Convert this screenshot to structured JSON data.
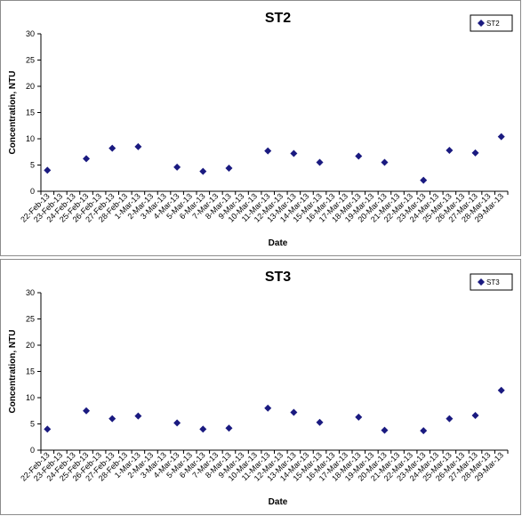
{
  "chart_data": [
    {
      "type": "scatter",
      "title": "ST2",
      "xlabel": "Date",
      "ylabel": "Concentration, NTU",
      "ylim": [
        0,
        30
      ],
      "yticks": [
        0,
        5,
        10,
        15,
        20,
        25,
        30
      ],
      "x_ticks": [
        "22-Feb-13",
        "23-Feb-13",
        "24-Feb-13",
        "25-Feb-13",
        "26-Feb-13",
        "27-Feb-13",
        "28-Feb-13",
        "1-Mar-13",
        "2-Mar-13",
        "3-Mar-13",
        "4-Mar-13",
        "5-Mar-13",
        "6-Mar-13",
        "7-Mar-13",
        "8-Mar-13",
        "9-Mar-13",
        "10-Mar-13",
        "11-Mar-13",
        "12-Mar-13",
        "13-Mar-13",
        "14-Mar-13",
        "15-Mar-13",
        "16-Mar-13",
        "17-Mar-13",
        "18-Mar-13",
        "19-Mar-13",
        "20-Mar-13",
        "21-Mar-13",
        "22-Mar-13",
        "23-Mar-13",
        "24-Mar-13",
        "25-Mar-13",
        "26-Mar-13",
        "27-Mar-13",
        "28-Mar-13",
        "29-Mar-13"
      ],
      "grid": false,
      "legend": "top-right",
      "marker_color": "#1a1a80",
      "series": [
        {
          "name": "ST2",
          "x": [
            "22-Feb-13",
            "25-Feb-13",
            "27-Feb-13",
            "1-Mar-13",
            "4-Mar-13",
            "6-Mar-13",
            "8-Mar-13",
            "11-Mar-13",
            "13-Mar-13",
            "15-Mar-13",
            "18-Mar-13",
            "20-Mar-13",
            "23-Mar-13",
            "25-Mar-13",
            "27-Mar-13",
            "29-Mar-13"
          ],
          "y": [
            4.0,
            6.2,
            8.2,
            8.5,
            4.6,
            3.8,
            4.4,
            7.7,
            7.2,
            5.5,
            6.7,
            5.5,
            2.1,
            7.8,
            7.3,
            10.4
          ]
        }
      ]
    },
    {
      "type": "scatter",
      "title": "ST3",
      "xlabel": "Date",
      "ylabel": "Concentration, NTU",
      "ylim": [
        0,
        30
      ],
      "yticks": [
        0,
        5,
        10,
        15,
        20,
        25,
        30
      ],
      "x_ticks": [
        "22-Feb-13",
        "23-Feb-13",
        "24-Feb-13",
        "25-Feb-13",
        "26-Feb-13",
        "27-Feb-13",
        "28-Feb-13",
        "1-Mar-13",
        "2-Mar-13",
        "3-Mar-13",
        "4-Mar-13",
        "5-Mar-13",
        "6-Mar-13",
        "7-Mar-13",
        "8-Mar-13",
        "9-Mar-13",
        "10-Mar-13",
        "11-Mar-13",
        "12-Mar-13",
        "13-Mar-13",
        "14-Mar-13",
        "15-Mar-13",
        "16-Mar-13",
        "17-Mar-13",
        "18-Mar-13",
        "19-Mar-13",
        "20-Mar-13",
        "21-Mar-13",
        "22-Mar-13",
        "23-Mar-13",
        "24-Mar-13",
        "25-Mar-13",
        "26-Mar-13",
        "27-Mar-13",
        "28-Mar-13",
        "29-Mar-13"
      ],
      "grid": false,
      "legend": "top-right",
      "marker_color": "#1a1a80",
      "series": [
        {
          "name": "ST3",
          "x": [
            "22-Feb-13",
            "25-Feb-13",
            "27-Feb-13",
            "1-Mar-13",
            "4-Mar-13",
            "6-Mar-13",
            "8-Mar-13",
            "11-Mar-13",
            "13-Mar-13",
            "15-Mar-13",
            "18-Mar-13",
            "20-Mar-13",
            "23-Mar-13",
            "25-Mar-13",
            "27-Mar-13",
            "29-Mar-13"
          ],
          "y": [
            4.0,
            7.5,
            6.0,
            6.5,
            5.2,
            4.0,
            4.2,
            8.0,
            7.2,
            5.3,
            6.3,
            3.8,
            3.7,
            6.0,
            6.6,
            11.4
          ]
        }
      ]
    }
  ]
}
